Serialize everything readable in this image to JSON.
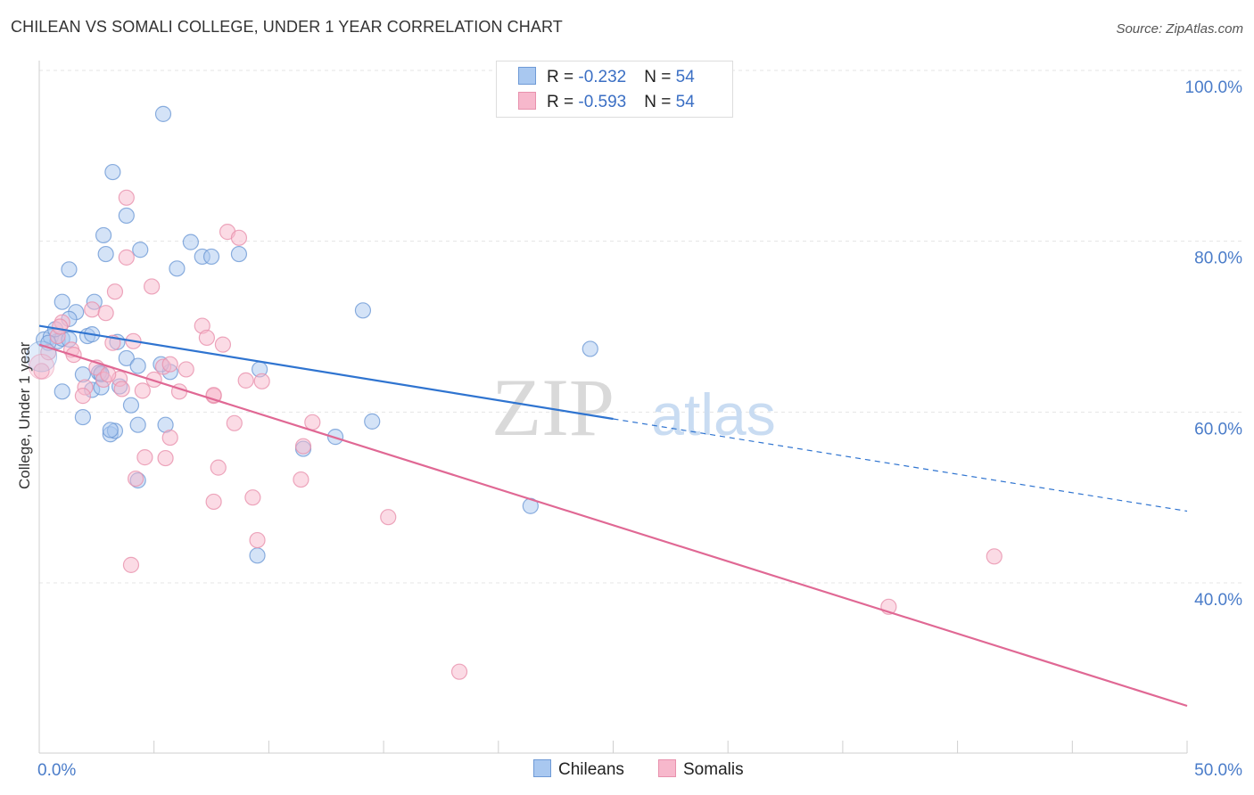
{
  "title": "CHILEAN VS SOMALI COLLEGE, UNDER 1 YEAR CORRELATION CHART",
  "source": "Source: ZipAtlas.com",
  "watermark": {
    "zip": "ZIP",
    "atlas": "atlas"
  },
  "legend": {
    "rows": [
      {
        "r_label": "R = ",
        "r_value": "-0.232",
        "n_label": "N = ",
        "n_value": "54"
      },
      {
        "r_label": "R = ",
        "r_value": "-0.593",
        "n_label": "N = ",
        "n_value": "54"
      }
    ]
  },
  "colors": {
    "chileans_fill": "#a9c8f0",
    "chileans_stroke": "#6e9ad6",
    "chileans_line": "#2f74d0",
    "somalis_fill": "#f7b8cc",
    "somalis_stroke": "#e891ad",
    "somalis_line": "#e06894",
    "tick_label": "#4a7cc9",
    "grid": "#e4e4e4"
  },
  "chart_data": {
    "type": "scatter",
    "title": "CHILEAN VS SOMALI COLLEGE, UNDER 1 YEAR CORRELATION CHART",
    "xlabel": "",
    "ylabel": "College, Under 1 year",
    "xlim": [
      0,
      50
    ],
    "ylim": [
      20,
      103
    ],
    "x_tick_labels": [
      "0.0%",
      "50.0%"
    ],
    "y_ticks": [
      40,
      60,
      80,
      100
    ],
    "y_tick_labels": [
      "40.0%",
      "60.0%",
      "80.0%",
      "100.0%"
    ],
    "grid": true,
    "legend_position": "top-center",
    "series": [
      {
        "name": "Chileans",
        "r": -0.232,
        "n": 54,
        "trend": {
          "x0": 0,
          "y0": 70.1,
          "x1": 25,
          "y1": 59.2,
          "dash_x1": 50,
          "dash_y1": 48.4
        },
        "points": [
          [
            0.2,
            68.5
          ],
          [
            0.5,
            68.8
          ],
          [
            0.8,
            68.3
          ],
          [
            1.0,
            68.6
          ],
          [
            0.7,
            69.7
          ],
          [
            1.3,
            68.5
          ],
          [
            0.4,
            68.1
          ],
          [
            1.0,
            72.9
          ],
          [
            1.6,
            71.7
          ],
          [
            2.4,
            72.9
          ],
          [
            2.1,
            68.9
          ],
          [
            2.3,
            69.1
          ],
          [
            1.3,
            70.9
          ],
          [
            1.0,
            62.4
          ],
          [
            2.3,
            62.6
          ],
          [
            1.9,
            64.4
          ],
          [
            2.7,
            64.4
          ],
          [
            2.6,
            64.6
          ],
          [
            2.7,
            62.9
          ],
          [
            3.5,
            63.0
          ],
          [
            3.8,
            66.3
          ],
          [
            4.0,
            60.8
          ],
          [
            4.3,
            65.4
          ],
          [
            5.7,
            64.7
          ],
          [
            5.3,
            65.6
          ],
          [
            3.4,
            68.2
          ],
          [
            4.3,
            58.5
          ],
          [
            1.9,
            59.4
          ],
          [
            3.1,
            57.4
          ],
          [
            3.3,
            57.8
          ],
          [
            4.4,
            79.0
          ],
          [
            2.9,
            78.5
          ],
          [
            2.8,
            80.7
          ],
          [
            3.8,
            83.0
          ],
          [
            3.2,
            88.1
          ],
          [
            1.3,
            76.7
          ],
          [
            6.0,
            76.8
          ],
          [
            7.1,
            78.2
          ],
          [
            7.5,
            78.2
          ],
          [
            8.7,
            78.5
          ],
          [
            6.6,
            79.9
          ],
          [
            5.4,
            94.9
          ],
          [
            9.6,
            65.0
          ],
          [
            14.1,
            71.9
          ],
          [
            14.5,
            58.9
          ],
          [
            12.9,
            57.1
          ],
          [
            11.5,
            55.7
          ],
          [
            24.0,
            67.4
          ],
          [
            21.4,
            49.0
          ],
          [
            9.5,
            43.2
          ],
          [
            4.3,
            52.0
          ],
          [
            3.1,
            57.9
          ],
          [
            5.5,
            58.5
          ],
          [
            2.7,
            64.5
          ]
        ]
      },
      {
        "name": "Somalis",
        "r": -0.593,
        "n": 54,
        "trend": {
          "x0": 0,
          "y0": 67.9,
          "x1": 50,
          "y1": 25.6
        },
        "points": [
          [
            0.1,
            64.8
          ],
          [
            0.4,
            67.0
          ],
          [
            0.8,
            68.9
          ],
          [
            1.0,
            70.5
          ],
          [
            1.4,
            67.3
          ],
          [
            0.9,
            70.0
          ],
          [
            1.5,
            66.7
          ],
          [
            2.0,
            62.9
          ],
          [
            1.9,
            61.9
          ],
          [
            2.3,
            72.0
          ],
          [
            2.9,
            71.6
          ],
          [
            2.5,
            65.2
          ],
          [
            2.8,
            63.8
          ],
          [
            3.2,
            68.1
          ],
          [
            3.3,
            74.1
          ],
          [
            3.5,
            63.9
          ],
          [
            3.6,
            62.7
          ],
          [
            3.8,
            78.1
          ],
          [
            3.8,
            85.1
          ],
          [
            4.1,
            68.3
          ],
          [
            4.5,
            62.5
          ],
          [
            4.9,
            74.7
          ],
          [
            5.0,
            63.8
          ],
          [
            5.4,
            65.3
          ],
          [
            5.7,
            65.6
          ],
          [
            6.1,
            62.4
          ],
          [
            6.4,
            65.0
          ],
          [
            7.1,
            70.1
          ],
          [
            7.3,
            68.7
          ],
          [
            7.6,
            61.9
          ],
          [
            7.6,
            62.0
          ],
          [
            8.0,
            67.9
          ],
          [
            8.2,
            81.1
          ],
          [
            8.7,
            80.4
          ],
          [
            9.0,
            63.7
          ],
          [
            9.7,
            63.6
          ],
          [
            8.5,
            58.7
          ],
          [
            7.8,
            53.5
          ],
          [
            7.6,
            49.5
          ],
          [
            9.5,
            45.0
          ],
          [
            9.3,
            50.0
          ],
          [
            11.9,
            58.8
          ],
          [
            11.5,
            56.0
          ],
          [
            11.4,
            52.1
          ],
          [
            15.2,
            47.7
          ],
          [
            5.7,
            57.0
          ],
          [
            4.6,
            54.7
          ],
          [
            4.2,
            52.2
          ],
          [
            5.5,
            54.6
          ],
          [
            4.0,
            42.1
          ],
          [
            18.3,
            29.6
          ],
          [
            37.0,
            37.2
          ],
          [
            41.6,
            43.1
          ],
          [
            3.0,
            64.4
          ]
        ]
      }
    ]
  },
  "bottom_legend": [
    "Chileans",
    "Somalis"
  ]
}
